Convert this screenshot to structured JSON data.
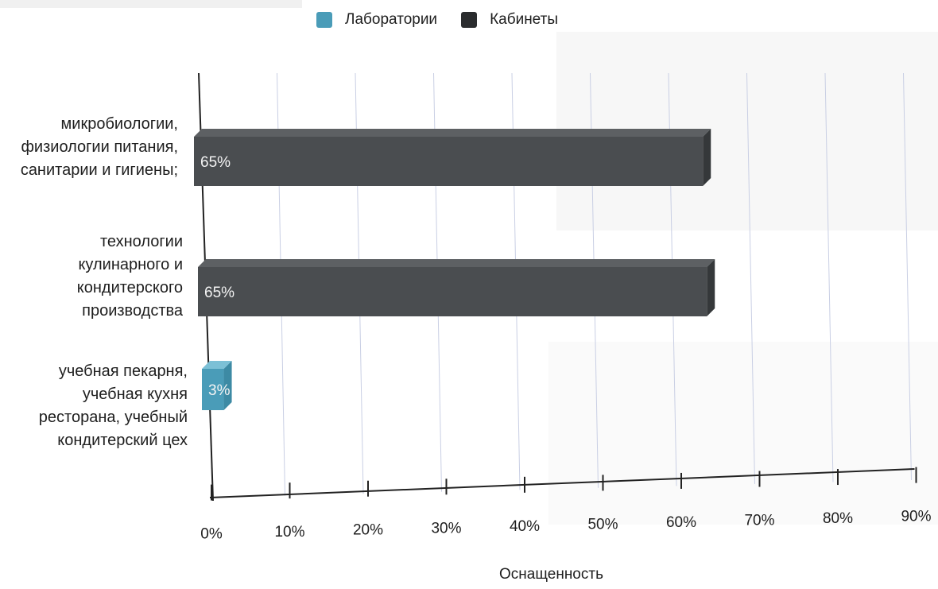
{
  "chart_data": {
    "type": "bar",
    "orientation": "horizontal",
    "xlabel": "Оснащенность",
    "xlim": [
      0,
      90
    ],
    "xticks": [
      "0%",
      "10%",
      "20%",
      "30%",
      "40%",
      "50%",
      "60%",
      "70%",
      "80%",
      "90%"
    ],
    "grid": true,
    "legend_position": "top-center",
    "legend": [
      {
        "name": "Лаборатории",
        "color": "#4a9cb8"
      },
      {
        "name": "Кабинеты",
        "color": "#4a4d50"
      }
    ],
    "categories": [
      "микробиологии,\nфизиологии питания,\nсанитарии и гигиены;",
      "технологии\nкулинарного и\nкондитерского\nпроизводства",
      "учебная пекарня,\nучебная кухня\nресторана, учебный\nкондитерский цех"
    ],
    "bars": [
      {
        "series": "Кабинеты",
        "value": 65,
        "label": "65%"
      },
      {
        "series": "Кабинеты",
        "value": 65,
        "label": "65%"
      },
      {
        "series": "Лаборатории",
        "value": 3,
        "label": "3%"
      }
    ]
  }
}
